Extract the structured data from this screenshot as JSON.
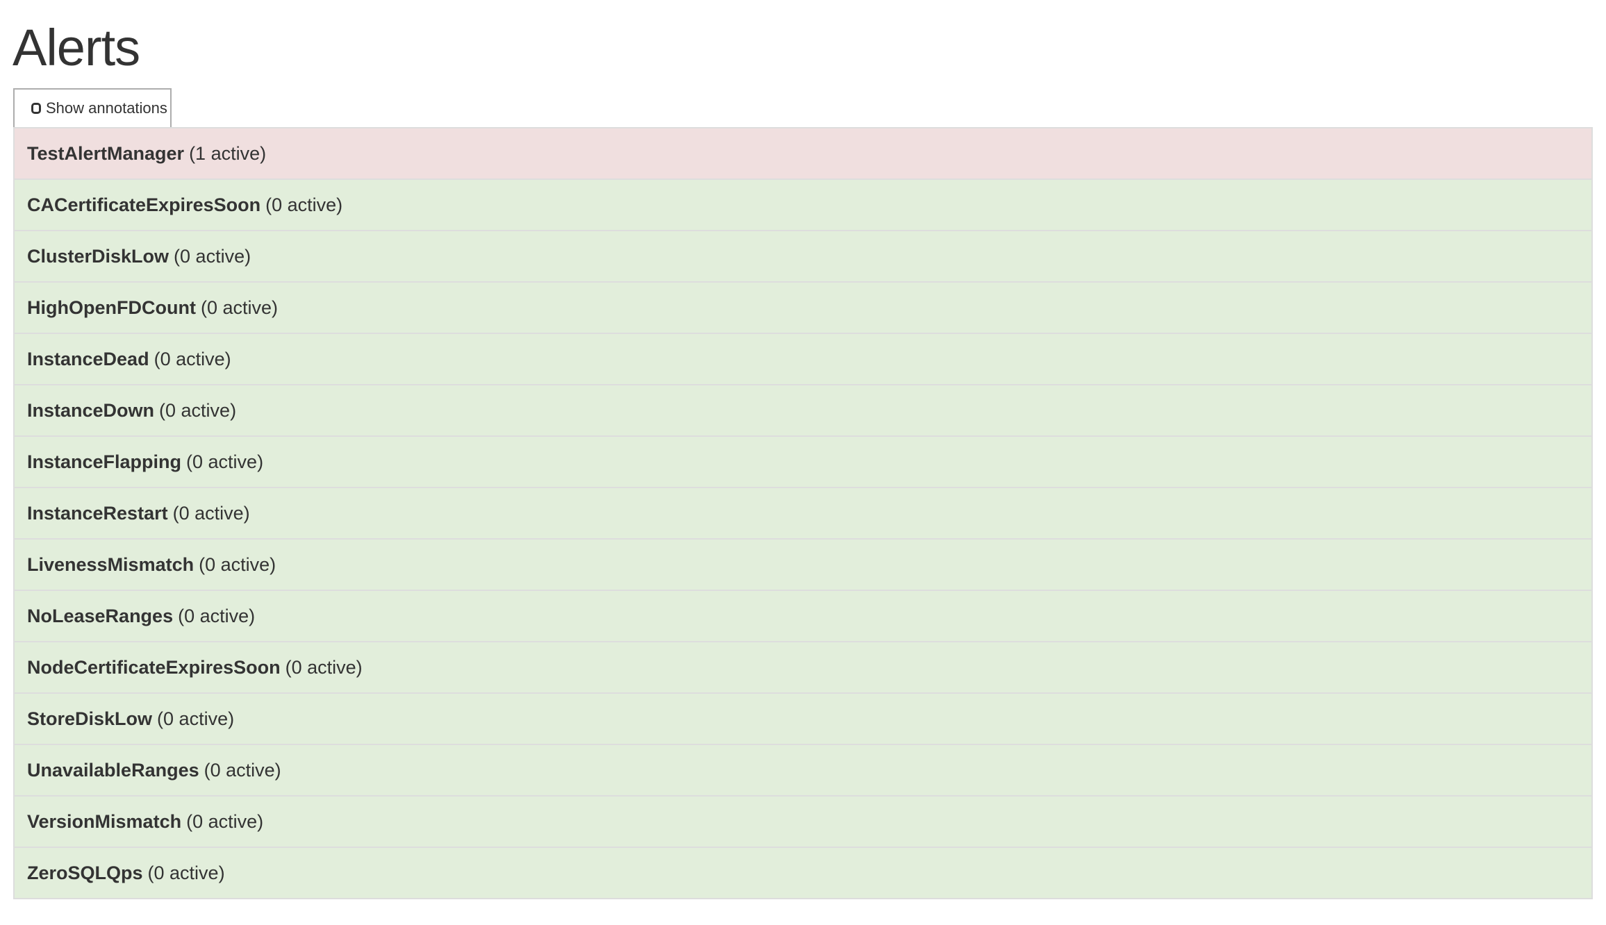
{
  "page": {
    "title": "Alerts"
  },
  "toolbar": {
    "show_annotations_label": "Show annotations",
    "show_annotations_checked": false
  },
  "colors": {
    "firing": "#f0dfdf",
    "inactive": "#e2eedb",
    "border": "#dddddd"
  },
  "alerts": [
    {
      "name": "TestAlertManager",
      "status": "(1 active)",
      "state": "firing"
    },
    {
      "name": "CACertificateExpiresSoon",
      "status": "(0 active)",
      "state": "inactive"
    },
    {
      "name": "ClusterDiskLow",
      "status": "(0 active)",
      "state": "inactive"
    },
    {
      "name": "HighOpenFDCount",
      "status": "(0 active)",
      "state": "inactive"
    },
    {
      "name": "InstanceDead",
      "status": "(0 active)",
      "state": "inactive"
    },
    {
      "name": "InstanceDown",
      "status": "(0 active)",
      "state": "inactive"
    },
    {
      "name": "InstanceFlapping",
      "status": "(0 active)",
      "state": "inactive"
    },
    {
      "name": "InstanceRestart",
      "status": "(0 active)",
      "state": "inactive"
    },
    {
      "name": "LivenessMismatch",
      "status": "(0 active)",
      "state": "inactive"
    },
    {
      "name": "NoLeaseRanges",
      "status": "(0 active)",
      "state": "inactive"
    },
    {
      "name": "NodeCertificateExpiresSoon",
      "status": "(0 active)",
      "state": "inactive"
    },
    {
      "name": "StoreDiskLow",
      "status": "(0 active)",
      "state": "inactive"
    },
    {
      "name": "UnavailableRanges",
      "status": "(0 active)",
      "state": "inactive"
    },
    {
      "name": "VersionMismatch",
      "status": "(0 active)",
      "state": "inactive"
    },
    {
      "name": "ZeroSQLQps",
      "status": "(0 active)",
      "state": "inactive"
    }
  ]
}
